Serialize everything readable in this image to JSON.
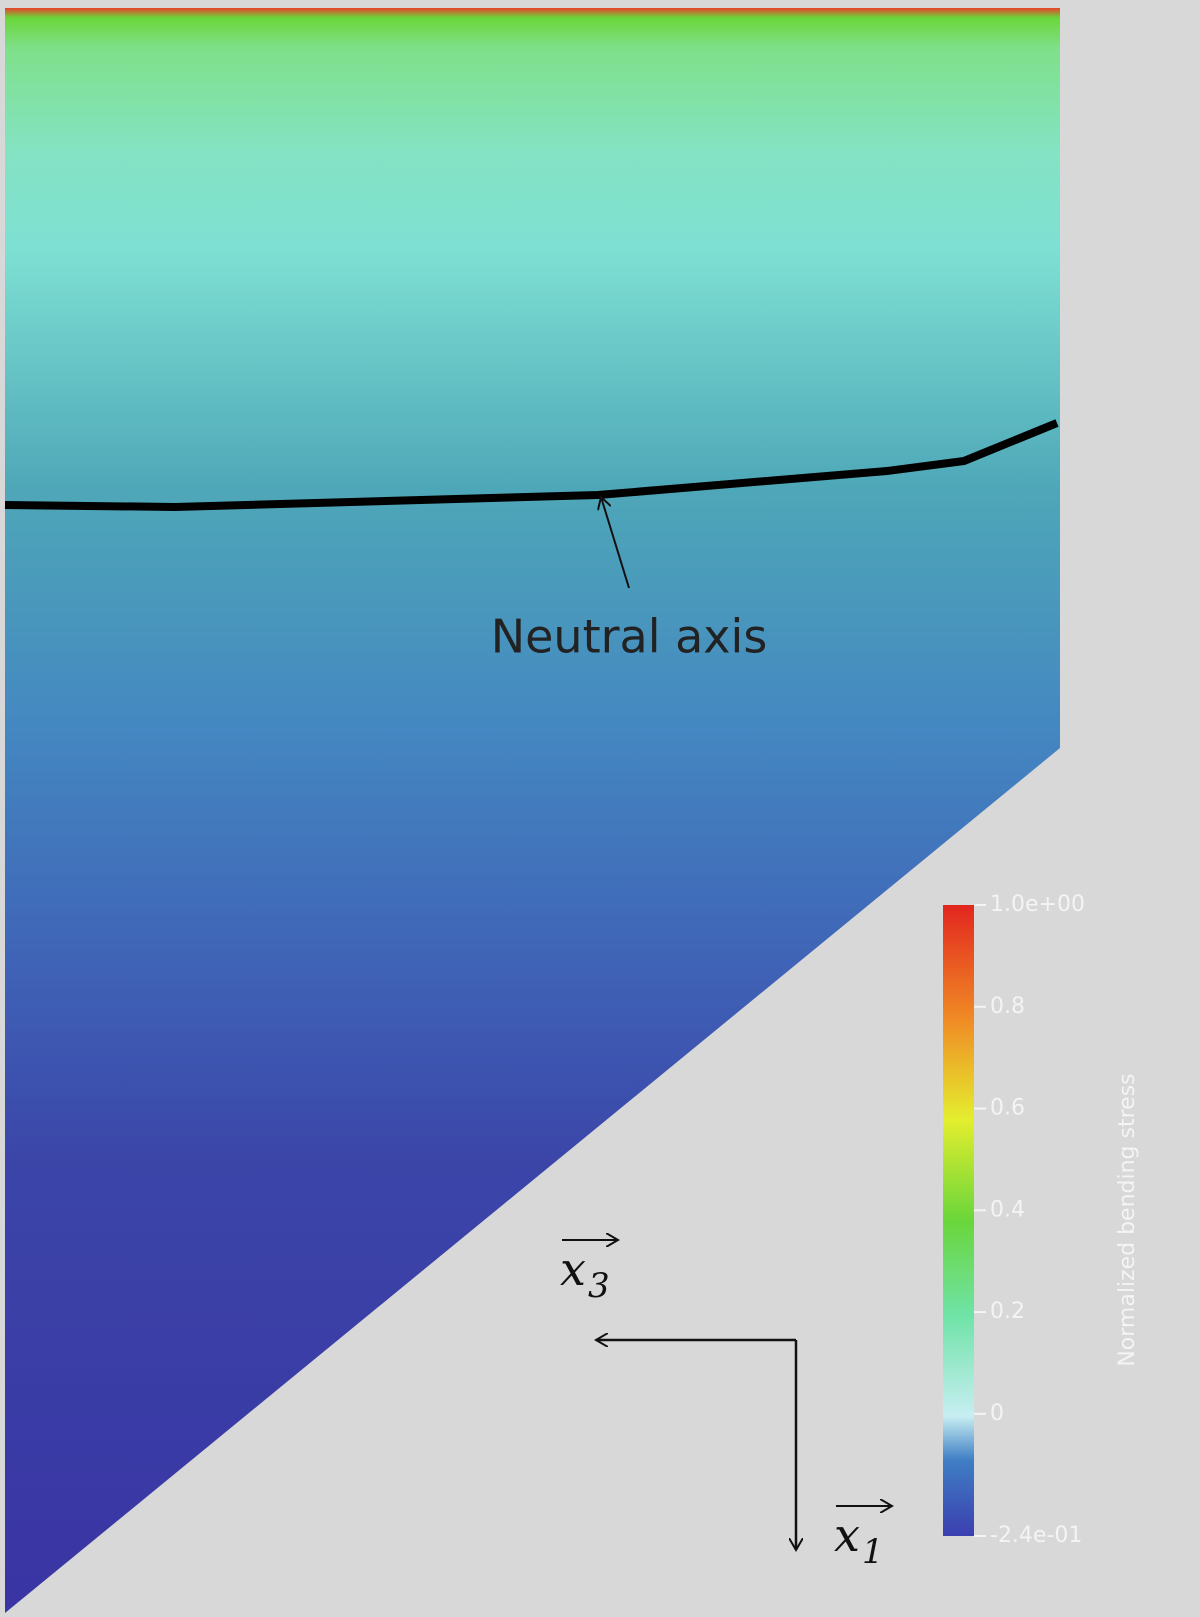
{
  "annotation": "Neutral axis",
  "axes": {
    "x3": {
      "symbol": "x",
      "subscript": "3"
    },
    "x1": {
      "symbol": "x",
      "subscript": "1"
    }
  },
  "colorbar": {
    "title": "Normalized bending stress",
    "lim": [
      -0.24,
      1
    ],
    "ticks": [
      {
        "value": 1,
        "label": "1.0e+00"
      },
      0.8,
      0.6,
      0.4,
      0.2,
      0,
      {
        "value": -0.24,
        "label": "-2.4e-01"
      }
    ]
  }
}
